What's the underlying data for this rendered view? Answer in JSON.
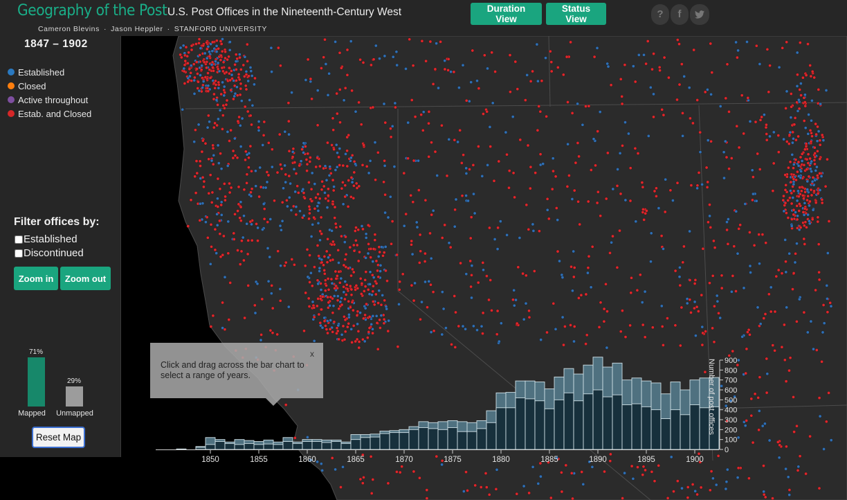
{
  "header": {
    "title": "Geography of the Post",
    "subtitle": "U.S. Post Offices in the Nineteenth-Century West",
    "credits": [
      "Cameron Blevins",
      "Jason Heppler",
      "STANFORD UNIVERSITY"
    ],
    "credit_separator": "·",
    "duration_view_label": "Duration View",
    "status_view_label": "Status View",
    "help_icon_glyph": "?",
    "facebook_icon_glyph": "f",
    "twitter_icon_name": "twitter-icon"
  },
  "sidebar": {
    "year_range": "1847 – 1902",
    "legend": [
      {
        "label": "Established",
        "color": "#1f77b4"
      },
      {
        "label": "Closed",
        "color": "#ff7f0e"
      },
      {
        "label": "Active throughout",
        "color": "#7e4fa0"
      },
      {
        "label": "Estab. and Closed",
        "color": "#d62728"
      }
    ],
    "filter_title": "Filter offices by:",
    "filters": [
      {
        "label": "Established",
        "checked": false
      },
      {
        "label": "Discontinued",
        "checked": false
      }
    ],
    "zoom_in_label": "Zoom in",
    "zoom_out_label": "Zoom out",
    "mapped": {
      "label": "Mapped",
      "percent_label": "71%",
      "value": 0.71,
      "color": "#17886a"
    },
    "unmapped": {
      "label": "Unmapped",
      "percent_label": "29%",
      "value": 0.29,
      "color": "#9c9c9c"
    },
    "reset_label": "Reset Map"
  },
  "tooltip": {
    "text": "Click and drag across the bar chart to select a range of years.",
    "close_label": "x"
  },
  "colors": {
    "accent": "#1aa57f",
    "panel_bg": "#262626",
    "map_bg": "#2b2b2b",
    "established": "#2f6fb5",
    "closed_both": "#e0262b",
    "bar_total": "#4f7180",
    "bar_active": "#17303c",
    "bar_stroke": "#cfe0e6"
  },
  "chart_data": {
    "type": "bar",
    "ylabel": "Number of post offices",
    "ylim": [
      0,
      900
    ],
    "y_ticks": [
      0,
      100,
      200,
      300,
      400,
      500,
      600,
      700,
      800,
      900
    ],
    "x_ticks": [
      1850,
      1855,
      1860,
      1865,
      1870,
      1875,
      1880,
      1885,
      1890,
      1895,
      1900
    ],
    "categories": [
      1847,
      1848,
      1849,
      1850,
      1851,
      1852,
      1853,
      1854,
      1855,
      1856,
      1857,
      1858,
      1859,
      1860,
      1861,
      1862,
      1863,
      1864,
      1865,
      1866,
      1867,
      1868,
      1869,
      1870,
      1871,
      1872,
      1873,
      1874,
      1875,
      1876,
      1877,
      1878,
      1879,
      1880,
      1881,
      1882,
      1883,
      1884,
      1885,
      1886,
      1887,
      1888,
      1889,
      1890,
      1891,
      1892,
      1893,
      1894,
      1895,
      1896,
      1897,
      1898,
      1899,
      1900,
      1901,
      1902
    ],
    "series": [
      {
        "name": "total",
        "values": [
          5,
          0,
          30,
          120,
          100,
          75,
          100,
          90,
          80,
          95,
          75,
          120,
          75,
          100,
          100,
          95,
          95,
          75,
          150,
          150,
          155,
          185,
          190,
          200,
          230,
          280,
          270,
          280,
          290,
          280,
          270,
          290,
          390,
          570,
          575,
          690,
          690,
          680,
          610,
          730,
          815,
          760,
          850,
          930,
          830,
          870,
          700,
          720,
          690,
          670,
          560,
          680,
          600,
          700,
          720,
          725
        ]
      },
      {
        "name": "active",
        "values": [
          0,
          0,
          20,
          50,
          80,
          60,
          50,
          60,
          50,
          55,
          50,
          80,
          60,
          80,
          80,
          70,
          80,
          60,
          100,
          120,
          125,
          160,
          170,
          170,
          200,
          220,
          210,
          200,
          220,
          180,
          180,
          210,
          270,
          420,
          420,
          520,
          510,
          490,
          410,
          500,
          570,
          490,
          560,
          600,
          530,
          550,
          450,
          460,
          430,
          400,
          310,
          400,
          350,
          450,
          420,
          430
        ]
      }
    ]
  }
}
